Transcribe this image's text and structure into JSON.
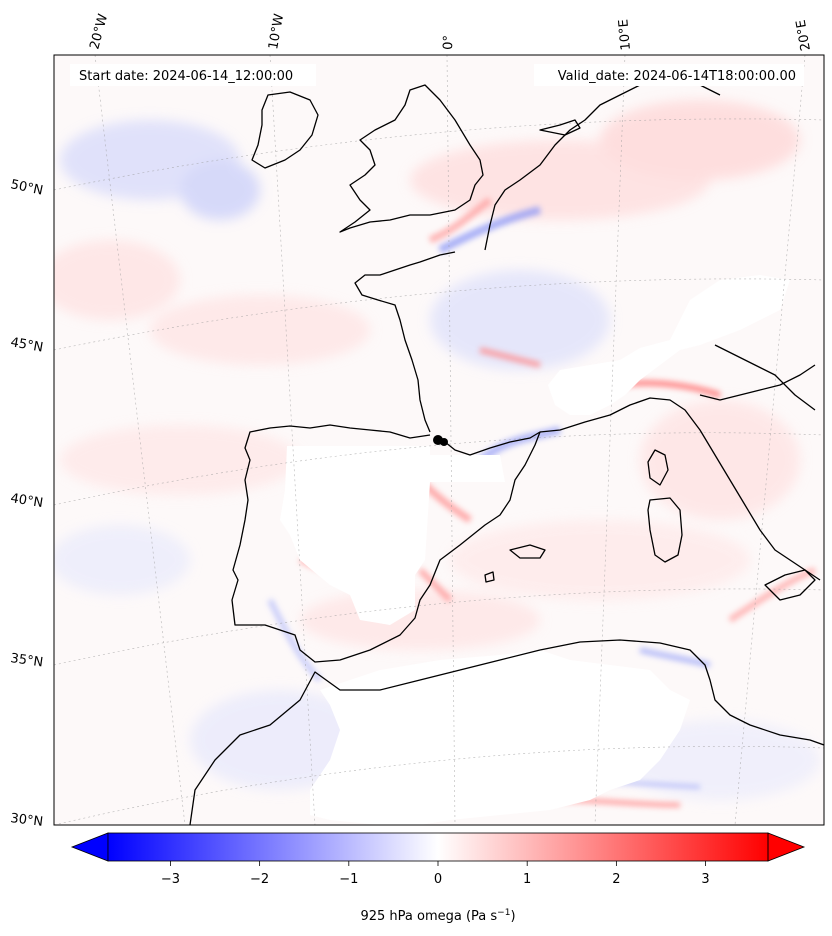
{
  "map": {
    "start_date_label": "Start date: 2024-06-14_12:00:00",
    "valid_date_label": "Valid_date: 2024-06-14T18:00:00.00",
    "lon_labels": [
      "20°W",
      "10°W",
      "0°",
      "10°E",
      "20°E"
    ],
    "lat_labels": [
      "50°N",
      "45°N",
      "40°N",
      "35°N",
      "30°N"
    ],
    "field": "925 hPa omega"
  },
  "colorbar": {
    "label_main": "925 hPa omega (Pa s",
    "label_exp": "−1",
    "label_close": ")",
    "ticks": [
      "−3",
      "−2",
      "−1",
      "0",
      "1",
      "2",
      "3"
    ],
    "tick_values": [
      -3,
      -2,
      -1,
      0,
      1,
      2,
      3
    ],
    "range": [
      -3.7,
      3.7
    ],
    "colormap": "bwr",
    "color_min": "#0000ff",
    "color_mid": "#ffffff",
    "color_max": "#ff0000"
  }
}
